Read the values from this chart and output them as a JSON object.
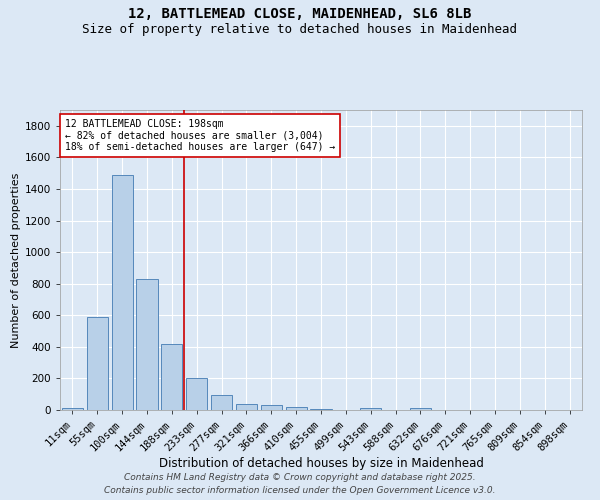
{
  "title1": "12, BATTLEMEAD CLOSE, MAIDENHEAD, SL6 8LB",
  "title2": "Size of property relative to detached houses in Maidenhead",
  "xlabel": "Distribution of detached houses by size in Maidenhead",
  "ylabel": "Number of detached properties",
  "categories": [
    "11sqm",
    "55sqm",
    "100sqm",
    "144sqm",
    "188sqm",
    "233sqm",
    "277sqm",
    "321sqm",
    "366sqm",
    "410sqm",
    "455sqm",
    "499sqm",
    "543sqm",
    "588sqm",
    "632sqm",
    "676sqm",
    "721sqm",
    "765sqm",
    "809sqm",
    "854sqm",
    "898sqm"
  ],
  "values": [
    15,
    590,
    1490,
    830,
    420,
    200,
    95,
    40,
    30,
    20,
    5,
    0,
    15,
    0,
    10,
    0,
    0,
    0,
    0,
    0,
    0
  ],
  "bar_color": "#b8d0e8",
  "bar_edge_color": "#5588bb",
  "vline_x": 4.5,
  "vline_color": "#cc0000",
  "annotation_text": "12 BATTLEMEAD CLOSE: 198sqm\n← 82% of detached houses are smaller (3,004)\n18% of semi-detached houses are larger (647) →",
  "annotation_box_color": "#ffffff",
  "annotation_box_edge": "#cc0000",
  "background_color": "#dce8f5",
  "plot_bg_color": "#dce8f5",
  "grid_color": "#ffffff",
  "footer1": "Contains HM Land Registry data © Crown copyright and database right 2025.",
  "footer2": "Contains public sector information licensed under the Open Government Licence v3.0.",
  "ylim": [
    0,
    1900
  ],
  "yticks": [
    0,
    200,
    400,
    600,
    800,
    1000,
    1200,
    1400,
    1600,
    1800
  ],
  "title1_fontsize": 10,
  "title2_fontsize": 9,
  "xlabel_fontsize": 8.5,
  "ylabel_fontsize": 8,
  "tick_fontsize": 7.5,
  "annot_fontsize": 7,
  "footer_fontsize": 6.5
}
